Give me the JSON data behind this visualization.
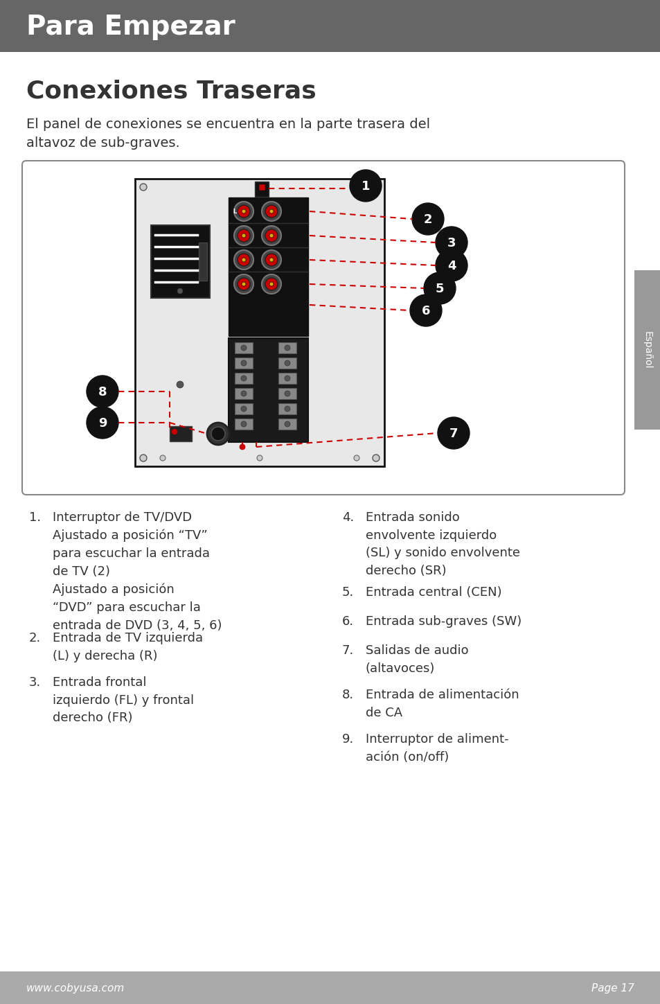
{
  "header_bg": "#666666",
  "header_text": "Para Empezar",
  "header_text_color": "#ffffff",
  "section_title": "Conexiones Traseras",
  "description": "El panel de conexiones se encuentra en la parte trasera del\naltavoz de sub-graves.",
  "footer_bg": "#aaaaaa",
  "footer_left": "www.cobyusa.com",
  "footer_right": "Page 17",
  "sidebar_bg": "#999999",
  "sidebar_text": "Español",
  "list_left": [
    [
      "1.",
      "Interruptor de TV/DVD\nAjustado a posición “TV”\npara escuchar la entrada\nde TV (2)\nAjustado a posición\n“DVD” para escuchar la\nentrada de DVD (3, 4, 5, 6)"
    ],
    [
      "2.",
      "Entrada de TV izquierda\n(L) y derecha (R)"
    ],
    [
      "3.",
      "Entrada frontal\nizquierdo (FL) y frontal\nderecho (FR)"
    ]
  ],
  "list_right": [
    [
      "4.",
      "Entrada sonido\nenvolvente izquierdo\n(SL) y sonido envolvente\nderecho (SR)"
    ],
    [
      "5.",
      "Entrada central (CEN)"
    ],
    [
      "6.",
      "Entrada sub-graves (SW)"
    ],
    [
      "7.",
      "Salidas de audio\n(altavoces)"
    ],
    [
      "8.",
      "Entrada de alimentación\nde CA"
    ],
    [
      "9.",
      "Interruptor de aliment-\nación (on/off)"
    ]
  ],
  "body_bg": "#ffffff",
  "text_color": "#333333",
  "page_width": 9.54,
  "page_height": 14.49
}
